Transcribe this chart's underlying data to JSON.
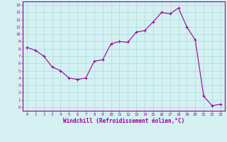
{
  "x": [
    0,
    1,
    2,
    3,
    4,
    5,
    6,
    7,
    8,
    9,
    10,
    11,
    12,
    13,
    14,
    15,
    16,
    17,
    18,
    19,
    20,
    21,
    22,
    23
  ],
  "y": [
    8.2,
    7.8,
    7.0,
    5.5,
    5.0,
    4.0,
    3.8,
    4.0,
    6.3,
    6.5,
    8.7,
    9.0,
    8.9,
    10.3,
    10.5,
    11.7,
    13.0,
    12.8,
    13.6,
    11.0,
    9.2,
    1.5,
    0.2,
    0.4
  ],
  "xlabel": "Windchill (Refroidissement éolien,°C)",
  "ylabel": "",
  "xlim": [
    -0.5,
    23.5
  ],
  "ylim": [
    -0.5,
    14.5
  ],
  "line_color": "#990099",
  "marker": "+",
  "bg_color": "#d4f0f0",
  "grid_color": "#aadddd",
  "label_color": "#990099",
  "tick_color": "#990099",
  "spine_color": "#990099"
}
